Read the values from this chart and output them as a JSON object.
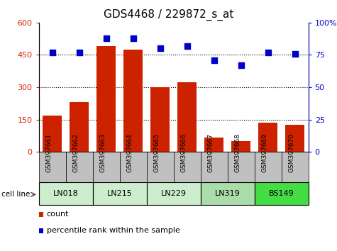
{
  "title": "GDS4468 / 229872_s_at",
  "samples": [
    "GSM397661",
    "GSM397662",
    "GSM397663",
    "GSM397664",
    "GSM397665",
    "GSM397666",
    "GSM397667",
    "GSM397668",
    "GSM397669",
    "GSM397670"
  ],
  "counts": [
    168,
    230,
    490,
    475,
    300,
    322,
    65,
    50,
    135,
    125
  ],
  "percentile_ranks": [
    77,
    77,
    88,
    88,
    80,
    82,
    71,
    67,
    77,
    76
  ],
  "cell_lines": [
    {
      "name": "LN018",
      "start": 0,
      "end": 1,
      "color": "#cceecc"
    },
    {
      "name": "LN215",
      "start": 2,
      "end": 3,
      "color": "#cceecc"
    },
    {
      "name": "LN229",
      "start": 4,
      "end": 5,
      "color": "#cceecc"
    },
    {
      "name": "LN319",
      "start": 6,
      "end": 7,
      "color": "#cceecc"
    },
    {
      "name": "BS149",
      "start": 8,
      "end": 9,
      "color": "#44dd44"
    }
  ],
  "left_ylim": [
    0,
    600
  ],
  "left_yticks": [
    0,
    150,
    300,
    450,
    600
  ],
  "right_ylim": [
    0,
    100
  ],
  "right_yticks": [
    0,
    25,
    50,
    75,
    100
  ],
  "bar_color": "#cc2200",
  "dot_color": "#0000cc",
  "label_count": "count",
  "label_percentile": "percentile rank within the sample",
  "bg_gray": "#c0c0c0",
  "cell_line_colors": [
    "#cceecc",
    "#cceecc",
    "#cceecc",
    "#aaddaa",
    "#44dd44"
  ],
  "title_fontsize": 11,
  "tick_fontsize": 8,
  "legend_fontsize": 8
}
